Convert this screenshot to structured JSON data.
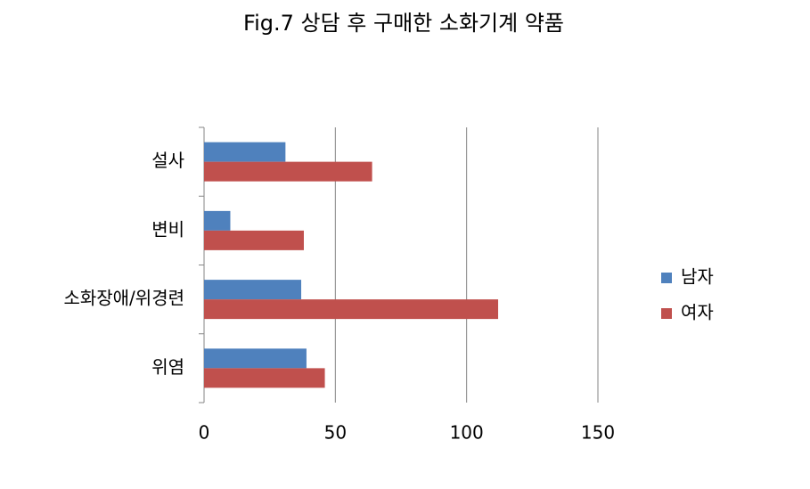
{
  "chart_data": {
    "type": "hbar",
    "title": "Fig.7 상담 후 구매한 소화기계 약품",
    "categories": [
      "설사",
      "변비",
      "소화장애/위경련",
      "위염"
    ],
    "series": [
      {
        "name": "남자",
        "color": "#4f81bd",
        "values": [
          31,
          10,
          37,
          39
        ]
      },
      {
        "name": "여자",
        "color": "#c0504d",
        "values": [
          64,
          38,
          112,
          46
        ]
      }
    ],
    "xlim": [
      0,
      150
    ],
    "xticks": [
      0,
      50,
      100,
      150
    ],
    "grid": true,
    "legend": "right"
  }
}
